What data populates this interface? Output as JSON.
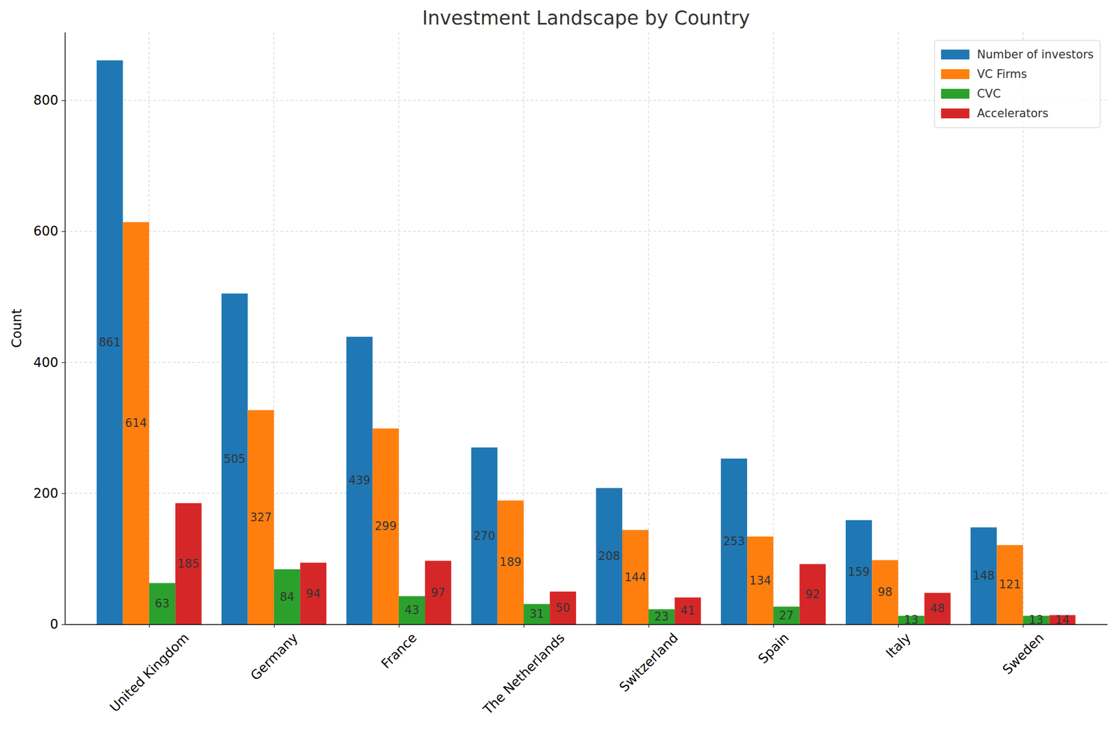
{
  "chart_data": {
    "type": "bar",
    "title": "Investment Landscape by Country",
    "y_label": "Count",
    "categories": [
      "United Kingdom",
      "Germany",
      "France",
      "The Netherlands",
      "Switzerland",
      "Spain",
      "Italy",
      "Sweden"
    ],
    "series": [
      {
        "name": "Number of investors",
        "color": "#1f77b4",
        "values": [
          861,
          505,
          439,
          270,
          208,
          253,
          159,
          148
        ]
      },
      {
        "name": "VC Firms",
        "color": "#ff7f0e",
        "values": [
          614,
          327,
          299,
          189,
          144,
          134,
          98,
          121
        ]
      },
      {
        "name": "CVC",
        "color": "#2ca02c",
        "values": [
          63,
          84,
          43,
          31,
          23,
          27,
          13,
          13
        ]
      },
      {
        "name": "Accelerators",
        "color": "#d62728",
        "values": [
          185,
          94,
          97,
          50,
          41,
          92,
          48,
          14
        ]
      }
    ],
    "ylim": [
      0,
      904
    ],
    "yticks": [
      0,
      200,
      400,
      600,
      800
    ],
    "grid": true,
    "legend": "upper right",
    "data_labels": true
  }
}
